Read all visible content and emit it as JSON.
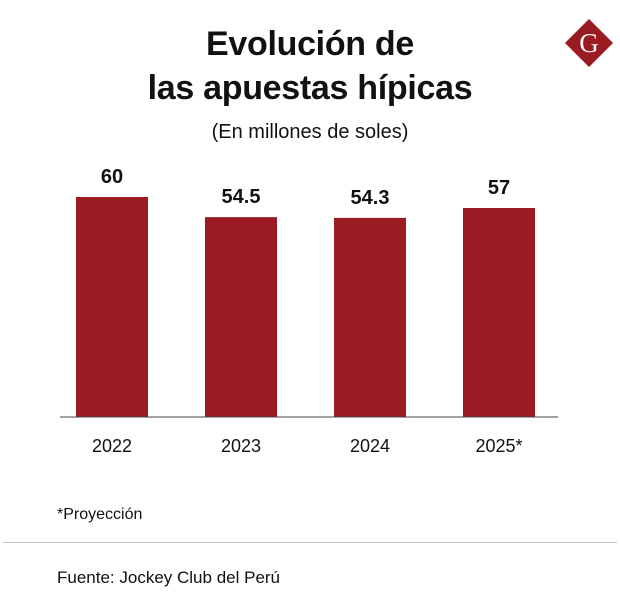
{
  "title_line1": "Evolución de",
  "title_line2": "las apuestas hípicas",
  "subtitle": "(En millones de soles)",
  "logo_letter": "G",
  "note": "*Proyección",
  "source": "Fuente: Jockey Club del Perú",
  "colors": {
    "bar": "#9b1b22",
    "logo": "#9b1b22",
    "axis": "#444444"
  },
  "chart_data": {
    "type": "bar",
    "title": "Evolución de las apuestas hípicas",
    "subtitle": "(En millones de soles)",
    "categories": [
      "2022",
      "2023",
      "2024",
      "2025*"
    ],
    "values": [
      60,
      54.5,
      54.3,
      57
    ],
    "labels": [
      "60",
      "54.5",
      "54.3",
      "57"
    ],
    "xlabel": "",
    "ylabel": "",
    "ylim": [
      0,
      60
    ],
    "grid": false,
    "legend": "none"
  }
}
